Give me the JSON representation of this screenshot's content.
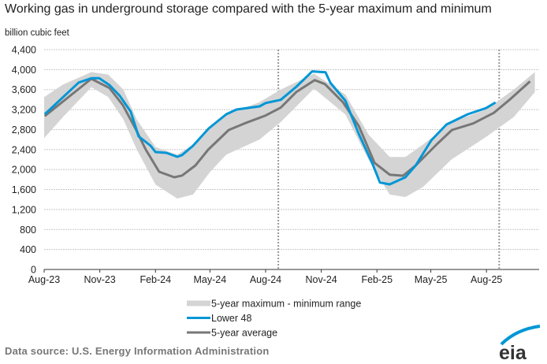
{
  "chart_data": {
    "type": "line",
    "title": "Working gas in underground  storage compared with the 5-year maximum and minimum",
    "ylabel": "billion cubic feet",
    "xlabel": "",
    "ylim": [
      0,
      4400
    ],
    "yticks": [
      "0",
      "400",
      "800",
      "1,200",
      "1,600",
      "2,000",
      "2,400",
      "2,800",
      "3,200",
      "3,600",
      "4,000",
      "4,400"
    ],
    "xticks": [
      {
        "label": "Aug-23",
        "date": "2023-08-01"
      },
      {
        "label": "Nov-23",
        "date": "2023-11-01"
      },
      {
        "label": "Feb-24",
        "date": "2024-02-01"
      },
      {
        "label": "May-24",
        "date": "2024-05-01"
      },
      {
        "label": "Aug-24",
        "date": "2024-08-01"
      },
      {
        "label": "Nov-24",
        "date": "2024-11-01"
      },
      {
        "label": "Feb-25",
        "date": "2025-02-01"
      },
      {
        "label": "May-25",
        "date": "2025-05-01"
      },
      {
        "label": "Aug-25",
        "date": "2025-08-01"
      }
    ],
    "xlim": [
      "2023-08-01",
      "2025-10-27"
    ],
    "grid": true,
    "reference_lines": [
      "2024-08-22",
      "2025-08-22"
    ],
    "legend_position": "bottom",
    "band": {
      "name": "5-year maximum - minimum range",
      "color": "#d4d4d4",
      "points": [
        [
          "2023-08-01",
          2630,
          3450
        ],
        [
          "2023-09-01",
          3050,
          3700
        ],
        [
          "2023-10-18",
          3650,
          3950
        ],
        [
          "2023-11-15",
          3450,
          3900
        ],
        [
          "2023-12-10",
          3000,
          3600
        ],
        [
          "2024-01-01",
          2400,
          3000
        ],
        [
          "2024-02-01",
          1700,
          2450
        ],
        [
          "2024-03-08",
          1420,
          2300
        ],
        [
          "2024-04-03",
          1500,
          2500
        ],
        [
          "2024-05-01",
          1950,
          2850
        ],
        [
          "2024-05-28",
          2300,
          3100
        ],
        [
          "2024-07-22",
          2600,
          3350
        ],
        [
          "2024-08-26",
          2950,
          3600
        ],
        [
          "2024-10-20",
          3620,
          3920
        ],
        [
          "2024-12-11",
          3100,
          3500
        ],
        [
          "2025-01-18",
          2200,
          2700
        ],
        [
          "2025-02-22",
          1500,
          2250
        ],
        [
          "2025-03-20",
          1450,
          2250
        ],
        [
          "2025-04-18",
          1650,
          2500
        ],
        [
          "2025-06-04",
          2200,
          2950
        ],
        [
          "2025-07-31",
          2650,
          3200
        ],
        [
          "2025-09-15",
          3050,
          3600
        ],
        [
          "2025-10-20",
          3550,
          3950
        ]
      ]
    },
    "series": [
      {
        "name": "Lower 48",
        "color": "#0096d6",
        "points": [
          [
            "2023-08-02",
            3107
          ],
          [
            "2023-09-27",
            3740
          ],
          [
            "2023-10-18",
            3828
          ],
          [
            "2023-10-31",
            3828
          ],
          [
            "2023-11-17",
            3690
          ],
          [
            "2023-12-04",
            3475
          ],
          [
            "2023-12-22",
            3160
          ],
          [
            "2024-01-04",
            2665
          ],
          [
            "2024-01-24",
            2476
          ],
          [
            "2024-02-01",
            2350
          ],
          [
            "2024-02-19",
            2334
          ],
          [
            "2024-03-08",
            2255
          ],
          [
            "2024-03-16",
            2290
          ],
          [
            "2024-04-03",
            2476
          ],
          [
            "2024-04-29",
            2823
          ],
          [
            "2024-05-28",
            3107
          ],
          [
            "2024-06-14",
            3202
          ],
          [
            "2024-07-22",
            3265
          ],
          [
            "2024-08-01",
            3330
          ],
          [
            "2024-08-26",
            3396
          ],
          [
            "2024-09-21",
            3659
          ],
          [
            "2024-10-17",
            3964
          ],
          [
            "2024-11-08",
            3948
          ],
          [
            "2024-11-16",
            3738
          ],
          [
            "2024-12-11",
            3375
          ],
          [
            "2025-01-02",
            2713
          ],
          [
            "2025-01-24",
            2134
          ],
          [
            "2025-02-06",
            1740
          ],
          [
            "2025-02-22",
            1703
          ],
          [
            "2025-03-20",
            1845
          ],
          [
            "2025-04-06",
            2082
          ],
          [
            "2025-05-02",
            2587
          ],
          [
            "2025-05-27",
            2902
          ],
          [
            "2025-07-01",
            3107
          ],
          [
            "2025-07-31",
            3228
          ],
          [
            "2025-08-16",
            3344
          ]
        ]
      },
      {
        "name": "5-year average",
        "color": "#777777",
        "points": [
          [
            "2023-08-02",
            3070
          ],
          [
            "2023-10-18",
            3817
          ],
          [
            "2023-11-17",
            3632
          ],
          [
            "2023-12-09",
            3292
          ],
          [
            "2023-12-30",
            2818
          ],
          [
            "2024-01-16",
            2397
          ],
          [
            "2024-02-07",
            1956
          ],
          [
            "2024-03-03",
            1845
          ],
          [
            "2024-03-16",
            1880
          ],
          [
            "2024-04-07",
            2082
          ],
          [
            "2024-04-28",
            2397
          ],
          [
            "2024-06-01",
            2792
          ],
          [
            "2024-06-27",
            2923
          ],
          [
            "2024-08-01",
            3081
          ],
          [
            "2024-08-26",
            3239
          ],
          [
            "2024-09-21",
            3554
          ],
          [
            "2024-10-21",
            3790
          ],
          [
            "2024-11-07",
            3711
          ],
          [
            "2024-12-07",
            3344
          ],
          [
            "2025-01-02",
            2871
          ],
          [
            "2025-01-28",
            2134
          ],
          [
            "2025-02-22",
            1897
          ],
          [
            "2025-03-16",
            1877
          ],
          [
            "2025-04-06",
            2082
          ],
          [
            "2025-05-11",
            2508
          ],
          [
            "2025-06-05",
            2792
          ],
          [
            "2025-07-10",
            2923
          ],
          [
            "2025-08-13",
            3134
          ],
          [
            "2025-09-08",
            3396
          ],
          [
            "2025-10-12",
            3764
          ]
        ]
      }
    ]
  },
  "source": "Data source:  U.S. Energy Information Administration",
  "logo": "eia"
}
